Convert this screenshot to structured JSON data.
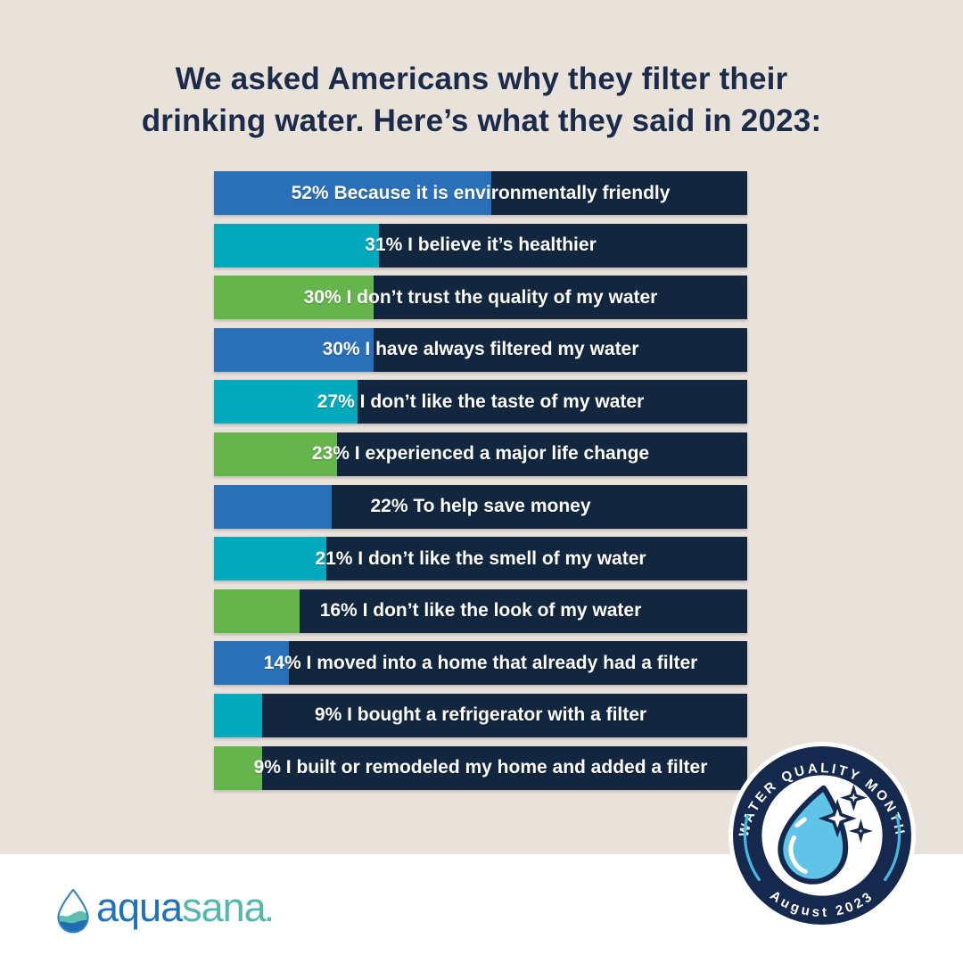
{
  "theme": {
    "background": "#e8e2da",
    "footer_background": "#ffffff",
    "bar_track_color": "#13263f",
    "title_color": "#1c2b49",
    "bar_text_color": "#ffffff",
    "accent_blue": "#2a70b8",
    "accent_teal": "#01a9bc",
    "accent_green": "#65b54d",
    "badge_navy": "#14294d",
    "badge_arc_blue": "#45b7e3",
    "badge_drop_blue": "#62c3e9",
    "logo_blue": "#2173b9",
    "logo_teal": "#55b7ad"
  },
  "title": {
    "line1": "We asked Americans why they filter their",
    "line2": "drinking water. Here’s what they said in 2023:"
  },
  "chart_data": {
    "type": "bar",
    "orientation": "horizontal",
    "value_unit": "%",
    "value_range": [
      0,
      100
    ],
    "grid": false,
    "legend": false,
    "items": [
      {
        "value": 52,
        "label": "52% Because it is environmentally friendly",
        "color": "#2a70b8"
      },
      {
        "value": 31,
        "label": "31% I believe it’s healthier",
        "color": "#01a9bc"
      },
      {
        "value": 30,
        "label": "30% I don’t trust the quality of my water",
        "color": "#65b54d"
      },
      {
        "value": 30,
        "label": "30% I have always filtered my water",
        "color": "#2a70b8"
      },
      {
        "value": 27,
        "label": "27% I don’t like the taste of my water",
        "color": "#01a9bc"
      },
      {
        "value": 23,
        "label": "23% I experienced a major life change",
        "color": "#65b54d"
      },
      {
        "value": 22,
        "label": "22% To help save money",
        "color": "#2a70b8"
      },
      {
        "value": 21,
        "label": "21% I don’t like the smell of my water",
        "color": "#01a9bc"
      },
      {
        "value": 16,
        "label": "16% I don’t like the look of my water",
        "color": "#65b54d"
      },
      {
        "value": 14,
        "label": "14% I moved into a home that already had a filter",
        "color": "#2a70b8"
      },
      {
        "value": 9,
        "label": "9% I bought a refrigerator with a filter",
        "color": "#01a9bc"
      },
      {
        "value": 9,
        "label": "9% I built or remodeled my home and added a filter",
        "color": "#65b54d"
      }
    ]
  },
  "badge": {
    "top_text": "WATER QUALITY MONTH",
    "bottom_text": "August 2023"
  },
  "logo": {
    "part1": "aqua",
    "part2": "sana",
    "dot": "."
  }
}
